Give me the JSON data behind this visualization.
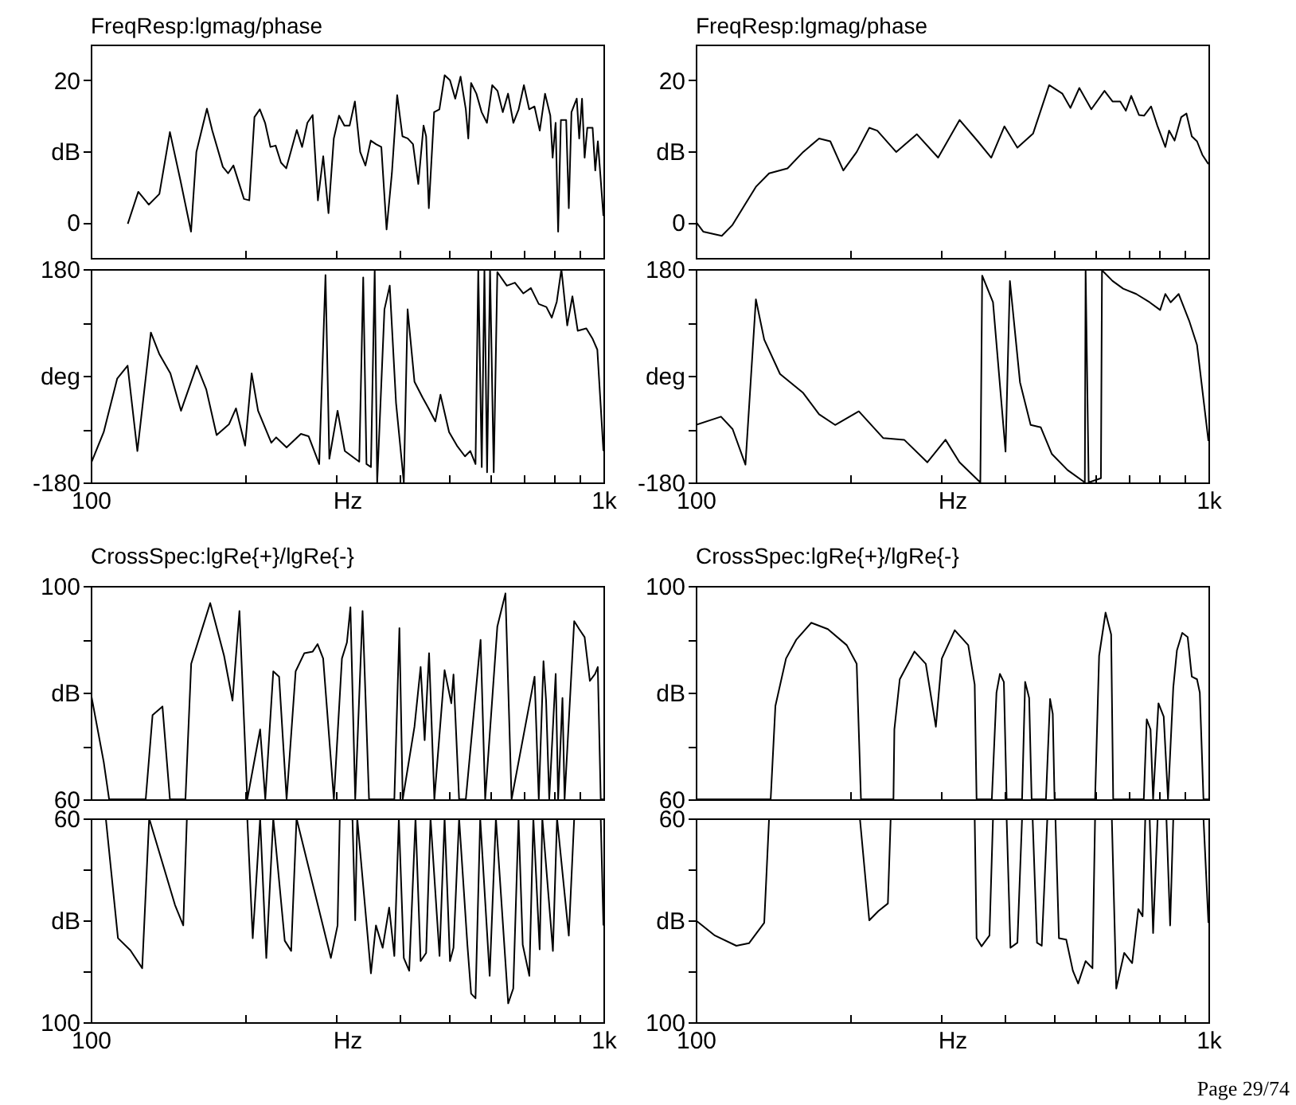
{
  "chart_data": [
    {
      "type": "line",
      "title": "FreqResp:lgmag/phase",
      "log": "x",
      "color": "#000000",
      "xlim": [
        100,
        1000
      ],
      "ylim": [
        -5,
        25
      ],
      "tick_labels": "y",
      "xticks": [
        {
          "value": 100,
          "label": null
        },
        {
          "value": 200,
          "label": null
        },
        {
          "value": 300,
          "label": null
        },
        {
          "value": 400,
          "label": null
        },
        {
          "value": 500,
          "label": null
        },
        {
          "value": 600,
          "label": null
        },
        {
          "value": 700,
          "label": null
        },
        {
          "value": 800,
          "label": null
        },
        {
          "value": 900,
          "label": null
        },
        {
          "value": 1000,
          "label": null
        }
      ],
      "yticks": [
        0,
        {
          "value": 10,
          "label": "dB"
        },
        20
      ],
      "x": [
        118.1,
        123.8,
        129.8,
        136.1,
        142.7,
        149.7,
        156.9,
        160.7,
        168.5,
        172.6,
        181.0,
        185.3,
        189.8,
        199.0,
        203.8,
        208.6,
        213.7,
        218.8,
        224.1,
        229.4,
        235.0,
        240.6,
        246.4,
        252.3,
        258.4,
        264.6,
        270.9,
        277.4,
        284.1,
        290.9,
        297.9,
        305.0,
        312.4,
        319.8,
        327.5,
        335.4,
        343.4,
        351.7,
        360.1,
        368.8,
        377.6,
        386.7,
        396.0,
        405.5,
        415.2,
        425.2,
        435.4,
        445.8,
        451,
        456.5,
        467.5,
        478.7,
        490.2,
        502.0,
        514.0,
        526.4,
        539.0,
        545,
        551.9,
        565.2,
        578.7,
        592.6,
        606.9,
        621.4,
        636.3,
        651.6,
        667.3,
        683.3,
        699.7,
        716.5,
        733.7,
        751.3,
        769.4,
        787.8,
        796,
        806.8,
        816,
        826.1,
        846.0,
        856,
        866.3,
        887.1,
        897,
        908.4,
        919,
        930.2,
        952.6,
        964,
        975.4,
        1000
      ],
      "values": [
        -0.2,
        4.3,
        2.5,
        4.0,
        12.7,
        5.8,
        -1.3,
        9.9,
        16.0,
        12.9,
        7.8,
        6.9,
        8.0,
        3.3,
        3.1,
        14.8,
        15.9,
        14.0,
        10.6,
        10.8,
        8.4,
        7.6,
        10.3,
        13.0,
        10.6,
        14.0,
        15.1,
        3.1,
        9.3,
        1.3,
        11.8,
        15.0,
        13.6,
        13.6,
        17.0,
        9.9,
        8.0,
        11.5,
        11.0,
        10.6,
        -1.0,
        6.9,
        17.9,
        12.1,
        11.8,
        11.0,
        5.4,
        13.6,
        12.1,
        2.0,
        15.5,
        15.9,
        20.7,
        20.0,
        17.4,
        20.5,
        15.9,
        11.8,
        19.6,
        18.1,
        15.5,
        14.0,
        19.3,
        18.5,
        15.5,
        18.1,
        14.0,
        15.9,
        19.3,
        15.9,
        16.3,
        12.9,
        18.1,
        15.0,
        9.1,
        14.0,
        -1.3,
        14.4,
        14.4,
        2.0,
        15.5,
        17.4,
        11.8,
        17.4,
        9.1,
        13.3,
        13.3,
        7.3,
        11.4,
        0.9
      ]
    },
    {
      "type": "line",
      "title": "FreqResp:lgmag/phase",
      "log": "x",
      "color": "#000000",
      "xlim": [
        100,
        1000
      ],
      "ylim": [
        -5,
        25
      ],
      "tick_labels": "y",
      "xticks": [
        {
          "value": 100,
          "label": null
        },
        {
          "value": 200,
          "label": null
        },
        {
          "value": 300,
          "label": null
        },
        {
          "value": 400,
          "label": null
        },
        {
          "value": 500,
          "label": null
        },
        {
          "value": 600,
          "label": null
        },
        {
          "value": 700,
          "label": null
        },
        {
          "value": 800,
          "label": null
        },
        {
          "value": 900,
          "label": null
        },
        {
          "value": 1000,
          "label": null
        }
      ],
      "yticks": [
        0,
        {
          "value": 10,
          "label": "dB"
        },
        20
      ],
      "x": [
        100,
        103.4,
        112.4,
        117.8,
        131,
        139,
        151,
        162,
        174,
        183,
        194,
        206,
        218,
        226,
        246,
        270,
        297,
        327,
        355,
        377,
        400,
        424,
        455,
        489,
        519,
        538,
        560,
        591,
        627,
        650,
        673,
        690,
        707,
        732,
        749,
        773,
        795,
        824,
        838,
        859,
        885,
        906,
        928,
        950,
        973,
        1000
      ],
      "values": [
        0.1,
        -1.3,
        -1.9,
        -0.4,
        5.0,
        6.9,
        7.6,
        9.9,
        11.8,
        11.4,
        7.3,
        9.9,
        13.3,
        12.9,
        9.9,
        12.4,
        9.1,
        14.4,
        11.4,
        9.1,
        13.5,
        10.5,
        12.5,
        19.3,
        18.1,
        16.1,
        18.9,
        15.9,
        18.5,
        17.0,
        17.0,
        15.7,
        17.8,
        15.1,
        15.0,
        16.3,
        13.6,
        10.6,
        12.9,
        11.5,
        14.8,
        15.3,
        12.1,
        11.4,
        9.5,
        8.2
      ]
    },
    {
      "type": "line",
      "log": "x",
      "color": "#000000",
      "xlabel": "Hz",
      "xlim": [
        100,
        1000
      ],
      "ylim": [
        -180,
        180
      ],
      "xticks": [
        {
          "value": 100,
          "label": "100"
        },
        {
          "value": 200,
          "label": null
        },
        {
          "value": 300,
          "label": null
        },
        {
          "value": 400,
          "label": null
        },
        {
          "value": 500,
          "label": null
        },
        {
          "value": 600,
          "label": null
        },
        {
          "value": 700,
          "label": null
        },
        {
          "value": 800,
          "label": null
        },
        {
          "value": 900,
          "label": null
        },
        {
          "value": 1000,
          "label": "1k"
        }
      ],
      "yticks": [
        -180,
        {
          "value": -90,
          "label": null
        },
        {
          "value": 0,
          "label": "deg"
        },
        {
          "value": 90,
          "label": null
        },
        180
      ],
      "x": [
        100,
        106,
        112.6,
        118,
        123.3,
        131,
        136,
        143,
        150,
        161,
        168,
        176,
        186,
        192,
        200,
        206,
        212,
        225,
        230,
        241,
        257,
        266,
        279,
        287,
        292,
        303,
        313,
        334,
        340,
        345,
        352,
        358,
        362,
        374,
        383,
        394,
        408,
        415,
        428,
        444,
        456,
        470,
        481,
        500,
        518,
        537,
        550,
        563,
        570,
        579,
        586,
        593,
        601,
        611,
        621,
        648,
        672,
        698,
        722,
        748,
        774,
        793,
        811,
        828,
        850,
        870,
        891,
        926,
        953,
        973,
        1000
      ],
      "values": [
        -149,
        -95,
        -5,
        17,
        -127,
        73,
        37,
        4,
        -59,
        17,
        -23,
        -100,
        -82,
        -55,
        -118,
        4,
        -59,
        -113,
        -104,
        -121,
        -98,
        -102,
        -149,
        170,
        -140,
        -59,
        -127,
        -145,
        166,
        -149,
        -154,
        180,
        -180,
        112,
        152,
        -46,
        -180,
        112,
        -10,
        -37,
        -55,
        -77,
        -32,
        -95,
        -118,
        -136,
        -127,
        -149,
        180,
        -154,
        180,
        -163,
        180,
        -163,
        175,
        152,
        157,
        139,
        148,
        121,
        116,
        98,
        125,
        180,
        85,
        134,
        76,
        80,
        62,
        44,
        -127
      ]
    },
    {
      "type": "line",
      "log": "x",
      "color": "#000000",
      "xlabel": "Hz",
      "xlim": [
        100,
        1000
      ],
      "ylim": [
        -180,
        180
      ],
      "xticks": [
        {
          "value": 100,
          "label": "100"
        },
        {
          "value": 200,
          "label": null
        },
        {
          "value": 300,
          "label": null
        },
        {
          "value": 400,
          "label": null
        },
        {
          "value": 500,
          "label": null
        },
        {
          "value": 600,
          "label": null
        },
        {
          "value": 700,
          "label": null
        },
        {
          "value": 800,
          "label": null
        },
        {
          "value": 900,
          "label": null
        },
        {
          "value": 1000,
          "label": "1k"
        }
      ],
      "yticks": [
        -180,
        {
          "value": -90,
          "label": null
        },
        {
          "value": 0,
          "label": "deg"
        },
        {
          "value": 90,
          "label": null
        },
        180
      ],
      "x": [
        100,
        112,
        118,
        125,
        131,
        136,
        146,
        162,
        174,
        187,
        208,
        232,
        255,
        283,
        307,
        327,
        359,
        362,
        380,
        402,
        410,
        429,
        450,
        471,
        495,
        531,
        574,
        576,
        584,
        617,
        620,
        650,
        682,
        723,
        768,
        805,
        824,
        844,
        875,
        917,
        950,
        1000
      ],
      "values": [
        -83,
        -69,
        -90,
        -150,
        129,
        61,
        3,
        -29,
        -65,
        -83,
        -60,
        -105,
        -108,
        -146,
        -108,
        -146,
        -180,
        169,
        124,
        -128,
        160,
        -11,
        -83,
        -87,
        -132,
        -159,
        -180,
        180,
        -180,
        -173,
        178,
        160,
        147,
        138,
        124,
        111,
        138,
        124,
        138,
        93,
        52,
        -110
      ]
    },
    {
      "type": "line",
      "title": "CrossSpec:lgRe{+}/lgRe{-}",
      "log": "x",
      "color": "#000000",
      "xlim": [
        100,
        1000
      ],
      "ylim": [
        60,
        100
      ],
      "tick_labels": "y",
      "xticks": [
        {
          "value": 100,
          "label": null
        },
        {
          "value": 200,
          "label": null
        },
        {
          "value": 300,
          "label": null
        },
        {
          "value": 400,
          "label": null
        },
        {
          "value": 500,
          "label": null
        },
        {
          "value": 600,
          "label": null
        },
        {
          "value": 700,
          "label": null
        },
        {
          "value": 800,
          "label": null
        },
        {
          "value": 900,
          "label": null
        },
        {
          "value": 1000,
          "label": null
        }
      ],
      "yticks": [
        60,
        {
          "value": 70,
          "label": null
        },
        {
          "value": 80,
          "label": "dB"
        },
        {
          "value": 90,
          "label": null
        },
        100
      ],
      "x": [
        100,
        106,
        108.6,
        128,
        132,
        138,
        142.7,
        153,
        157,
        171,
        182,
        189,
        195,
        202,
        214,
        219,
        227,
        233,
        241,
        251,
        261,
        271,
        277,
        284,
        298,
        309,
        316,
        321,
        328,
        339,
        349,
        391,
        400,
        406,
        428,
        440,
        448,
        457,
        468,
        490,
        505,
        510,
        523,
        539,
        576,
        588,
        621,
        644,
        662,
        734,
        748,
        764,
        773,
        784,
        807,
        816,
        832,
        840,
        877,
        897,
        919,
        941,
        963,
        975,
        988,
        1000
      ],
      "values": [
        80,
        67,
        60,
        60,
        75.8,
        77.4,
        60,
        60,
        85.4,
        96.8,
        86.9,
        78.5,
        95.3,
        60,
        73.1,
        60,
        84,
        83,
        60,
        84,
        87.4,
        87.7,
        89.1,
        86.4,
        60,
        86.4,
        89.4,
        96,
        60,
        95.3,
        60,
        60,
        92.1,
        60,
        73.6,
        84.8,
        71.1,
        87.4,
        60,
        84.2,
        78,
        83.4,
        60,
        60,
        89.9,
        60,
        92.4,
        98.6,
        60,
        83,
        60,
        85.9,
        78.5,
        60,
        83.5,
        60,
        79,
        60,
        93.4,
        91.9,
        90.4,
        82.2,
        83.5,
        84.8,
        60,
        60
      ]
    },
    {
      "type": "line",
      "title": "CrossSpec:lgRe{+}/lgRe{-}",
      "log": "x",
      "color": "#000000",
      "xlim": [
        100,
        1000
      ],
      "ylim": [
        60,
        100
      ],
      "tick_labels": "y",
      "xticks": [
        {
          "value": 100,
          "label": null
        },
        {
          "value": 200,
          "label": null
        },
        {
          "value": 300,
          "label": null
        },
        {
          "value": 400,
          "label": null
        },
        {
          "value": 500,
          "label": null
        },
        {
          "value": 600,
          "label": null
        },
        {
          "value": 700,
          "label": null
        },
        {
          "value": 800,
          "label": null
        },
        {
          "value": 900,
          "label": null
        },
        {
          "value": 1000,
          "label": null
        }
      ],
      "yticks": [
        60,
        {
          "value": 70,
          "label": null
        },
        {
          "value": 80,
          "label": "dB"
        },
        {
          "value": 90,
          "label": null
        },
        100
      ],
      "x": [
        100,
        140,
        143,
        150,
        157,
        168,
        181,
        197,
        206,
        210,
        243,
        244,
        250,
        267,
        281,
        294,
        302,
        320,
        340,
        350,
        353,
        378,
        386,
        392,
        399,
        404,
        433,
        439,
        447,
        452,
        482,
        491,
        497,
        501,
        601,
        612,
        630,
        646,
        652,
        748,
        758,
        771,
        780,
        799,
        818,
        834,
        854,
        868,
        889,
        911,
        928,
        950,
        962,
        978,
        1000
      ],
      "values": [
        60,
        60,
        77.5,
        86.4,
        89.9,
        93.1,
        91.9,
        88.9,
        85.4,
        60,
        60,
        73.1,
        82.5,
        87.7,
        85.4,
        73.6,
        86.4,
        91.7,
        88.9,
        81.5,
        60,
        60,
        80,
        83.5,
        82,
        60,
        60,
        82,
        79,
        60,
        60,
        78.8,
        76,
        60,
        60,
        86.9,
        95,
        90.9,
        60,
        60,
        75,
        73.1,
        60,
        78,
        75.5,
        60,
        81,
        87.9,
        91.2,
        90.4,
        83,
        82.5,
        80,
        60,
        60
      ]
    },
    {
      "type": "line",
      "log": "x",
      "color": "#000000",
      "xlabel": "Hz",
      "xlim": [
        100,
        1000
      ],
      "ylim": [
        100,
        60
      ],
      "xticks": [
        {
          "value": 100,
          "label": "100"
        },
        {
          "value": 200,
          "label": null
        },
        {
          "value": 300,
          "label": null
        },
        {
          "value": 400,
          "label": null
        },
        {
          "value": 500,
          "label": null
        },
        {
          "value": 600,
          "label": null
        },
        {
          "value": 700,
          "label": null
        },
        {
          "value": 800,
          "label": null
        },
        {
          "value": 900,
          "label": null
        },
        {
          "value": 1000,
          "label": "1k"
        }
      ],
      "yticks": [
        60,
        {
          "value": 70,
          "label": null
        },
        {
          "value": 80,
          "label": "dB"
        },
        {
          "value": 90,
          "label": null
        },
        100
      ],
      "x": [
        100,
        107,
        113,
        119.5,
        126,
        130,
        146,
        151.5,
        154,
        202,
        207,
        214,
        220,
        227,
        239,
        246,
        252,
        294,
        303,
        306,
        324,
        328,
        331,
        352,
        360,
        371,
        382,
        391,
        399,
        408,
        418,
        430,
        440,
        451,
        460,
        479,
        490,
        502,
        510,
        523,
        543,
        552,
        563,
        575,
        600,
        617,
        652,
        667,
        683,
        696,
        717,
        730,
        751,
        760,
        797,
        812,
        856,
        877,
        988,
        1000
      ],
      "values": [
        60,
        60,
        83.5,
        85.9,
        89.4,
        60,
        77,
        81,
        60,
        60,
        83.5,
        60,
        87.4,
        60,
        84,
        86,
        60,
        87.4,
        81,
        60,
        60.2,
        80,
        60,
        90.4,
        81,
        85.4,
        77.5,
        87,
        60,
        87.4,
        89.9,
        60,
        88,
        86.4,
        60,
        87,
        60,
        88,
        85.4,
        60,
        85,
        94.4,
        95.3,
        60,
        90.9,
        60,
        96.3,
        93.4,
        60,
        84.8,
        90.9,
        60,
        85.7,
        60,
        86,
        60,
        83,
        60,
        60,
        81
      ]
    },
    {
      "type": "line",
      "log": "x",
      "color": "#000000",
      "xlabel": "Hz",
      "xlim": [
        100,
        1000
      ],
      "ylim": [
        100,
        60
      ],
      "xticks": [
        {
          "value": 100,
          "label": "100"
        },
        {
          "value": 200,
          "label": null
        },
        {
          "value": 300,
          "label": null
        },
        {
          "value": 400,
          "label": null
        },
        {
          "value": 500,
          "label": null
        },
        {
          "value": 600,
          "label": null
        },
        {
          "value": 700,
          "label": null
        },
        {
          "value": 800,
          "label": null
        },
        {
          "value": 900,
          "label": null
        },
        {
          "value": 1000,
          "label": "1k"
        }
      ],
      "yticks": [
        60,
        {
          "value": 70,
          "label": null
        },
        {
          "value": 80,
          "label": "dB"
        },
        {
          "value": 90,
          "label": null
        },
        100
      ],
      "annotations": [
        "Page 29/74"
      ],
      "x": [
        100,
        109,
        120,
        127,
        136,
        139,
        209,
        218,
        227,
        237,
        240,
        350,
        353,
        361,
        374,
        380,
        404,
        411,
        424,
        433,
        454,
        463,
        473,
        485,
        503,
        511,
        528,
        544,
        557,
        576,
        594,
        601,
        648,
        661,
        685,
        710,
        730,
        744,
        753,
        768,
        780,
        796,
        828,
        842,
        854,
        978,
        1000
      ],
      "values": [
        80,
        83,
        85,
        84.5,
        80.5,
        60,
        60,
        80,
        78.2,
        76.7,
        60,
        60,
        83.5,
        85.1,
        83,
        60,
        60,
        85.4,
        84.4,
        60,
        60,
        84.4,
        85,
        60,
        60,
        83.5,
        83.8,
        89.9,
        92.4,
        88,
        89.4,
        60,
        60,
        93.4,
        86.4,
        88.4,
        77.8,
        79.2,
        60,
        60,
        82.5,
        60,
        60,
        81,
        60,
        60,
        80.5
      ]
    }
  ]
}
